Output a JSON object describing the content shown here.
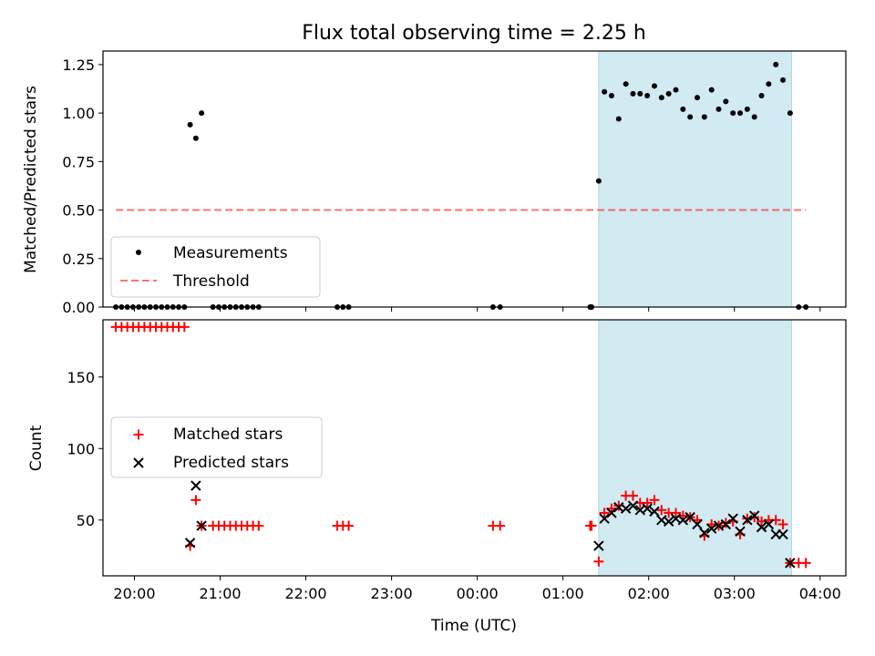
{
  "title": "Flux total observing time = 2.25 h",
  "colors": {
    "shade": "#add8e6",
    "measurement": "#000000",
    "threshold": "#ff0000",
    "matched": "#ff0000",
    "predicted": "#000000"
  },
  "chart_data": [
    {
      "type": "scatter",
      "ylabel": "Matched/Predicted stars",
      "ylim": [
        0,
        1.32
      ],
      "yticks": [
        0.0,
        0.25,
        0.5,
        0.75,
        1.0,
        1.25
      ],
      "ytick_labels": [
        "0.00",
        "0.25",
        "0.50",
        "0.75",
        "1.00",
        "1.25"
      ],
      "xlim": [
        "19:38",
        "04:18"
      ],
      "shaded_span": [
        "01:25",
        "03:40"
      ],
      "legend": {
        "placement": "lower-left",
        "entries": [
          "Measurements",
          "Threshold"
        ]
      },
      "threshold": {
        "name": "Threshold",
        "value": 0.5,
        "x_range": [
          "19:47",
          "03:50"
        ]
      },
      "series": [
        {
          "name": "Measurements",
          "marker": "dot",
          "points": [
            [
              "19:47",
              0
            ],
            [
              "19:51",
              0
            ],
            [
              "19:55",
              0
            ],
            [
              "19:59",
              0
            ],
            [
              "20:03",
              0
            ],
            [
              "20:07",
              0
            ],
            [
              "20:11",
              0
            ],
            [
              "20:15",
              0
            ],
            [
              "20:19",
              0
            ],
            [
              "20:23",
              0
            ],
            [
              "20:27",
              0
            ],
            [
              "20:31",
              0
            ],
            [
              "20:35",
              0
            ],
            [
              "20:39",
              0.94
            ],
            [
              "20:43",
              0.87
            ],
            [
              "20:47",
              1.0
            ],
            [
              "20:55",
              0
            ],
            [
              "20:59",
              0
            ],
            [
              "21:03",
              0
            ],
            [
              "21:07",
              0
            ],
            [
              "21:11",
              0
            ],
            [
              "21:15",
              0
            ],
            [
              "21:19",
              0
            ],
            [
              "21:23",
              0
            ],
            [
              "21:27",
              0
            ],
            [
              "22:22",
              0
            ],
            [
              "22:26",
              0
            ],
            [
              "22:30",
              0
            ],
            [
              "00:11",
              0
            ],
            [
              "00:16",
              0
            ],
            [
              "01:19",
              0
            ],
            [
              "01:20",
              0
            ],
            [
              "01:25",
              0.65
            ],
            [
              "01:29",
              1.11
            ],
            [
              "01:34",
              1.09
            ],
            [
              "01:39",
              0.97
            ],
            [
              "01:44",
              1.15
            ],
            [
              "01:49",
              1.1
            ],
            [
              "01:54",
              1.1
            ],
            [
              "01:59",
              1.09
            ],
            [
              "02:04",
              1.14
            ],
            [
              "02:09",
              1.08
            ],
            [
              "02:14",
              1.1
            ],
            [
              "02:19",
              1.12
            ],
            [
              "02:24",
              1.02
            ],
            [
              "02:29",
              0.98
            ],
            [
              "02:34",
              1.08
            ],
            [
              "02:39",
              0.98
            ],
            [
              "02:44",
              1.12
            ],
            [
              "02:49",
              1.02
            ],
            [
              "02:54",
              1.06
            ],
            [
              "02:59",
              1.0
            ],
            [
              "03:04",
              1.0
            ],
            [
              "03:09",
              1.02
            ],
            [
              "03:14",
              0.98
            ],
            [
              "03:19",
              1.09
            ],
            [
              "03:24",
              1.15
            ],
            [
              "03:29",
              1.25
            ],
            [
              "03:34",
              1.17
            ],
            [
              "03:39",
              1.0
            ],
            [
              "03:45",
              0
            ],
            [
              "03:50",
              0
            ]
          ]
        }
      ]
    },
    {
      "type": "scatter",
      "xlabel": "Time (UTC)",
      "ylabel": "Count",
      "ylim": [
        11,
        190
      ],
      "yticks": [
        50,
        100,
        150
      ],
      "ytick_labels": [
        "50",
        "100",
        "150"
      ],
      "xlim": [
        "19:38",
        "04:18"
      ],
      "xticks": [
        "20:00",
        "21:00",
        "22:00",
        "23:00",
        "00:00",
        "01:00",
        "02:00",
        "03:00",
        "04:00"
      ],
      "shaded_span": [
        "01:25",
        "03:40"
      ],
      "legend": {
        "placement": "center-left",
        "entries": [
          "Matched stars",
          "Predicted stars"
        ]
      },
      "series": [
        {
          "name": "Matched stars",
          "marker": "plus",
          "points": [
            [
              "19:47",
              185
            ],
            [
              "19:51",
              185
            ],
            [
              "19:55",
              185
            ],
            [
              "19:59",
              185
            ],
            [
              "20:03",
              185
            ],
            [
              "20:07",
              185
            ],
            [
              "20:11",
              185
            ],
            [
              "20:15",
              185
            ],
            [
              "20:19",
              185
            ],
            [
              "20:23",
              185
            ],
            [
              "20:27",
              185
            ],
            [
              "20:31",
              185
            ],
            [
              "20:35",
              185
            ],
            [
              "20:39",
              32
            ],
            [
              "20:43",
              64
            ],
            [
              "20:47",
              46
            ],
            [
              "20:55",
              46
            ],
            [
              "20:59",
              46
            ],
            [
              "21:03",
              46
            ],
            [
              "21:07",
              46
            ],
            [
              "21:11",
              46
            ],
            [
              "21:15",
              46
            ],
            [
              "21:19",
              46
            ],
            [
              "21:23",
              46
            ],
            [
              "21:27",
              46
            ],
            [
              "22:22",
              46
            ],
            [
              "22:26",
              46
            ],
            [
              "22:30",
              46
            ],
            [
              "00:11",
              46
            ],
            [
              "00:16",
              46
            ],
            [
              "01:19",
              46
            ],
            [
              "01:20",
              46
            ],
            [
              "01:25",
              21
            ],
            [
              "01:29",
              55
            ],
            [
              "01:34",
              58
            ],
            [
              "01:39",
              60
            ],
            [
              "01:44",
              67
            ],
            [
              "01:49",
              67
            ],
            [
              "01:54",
              62
            ],
            [
              "01:59",
              62
            ],
            [
              "02:04",
              64
            ],
            [
              "02:09",
              57
            ],
            [
              "02:14",
              55
            ],
            [
              "02:19",
              55
            ],
            [
              "02:24",
              53
            ],
            [
              "02:29",
              52
            ],
            [
              "02:34",
              50
            ],
            [
              "02:39",
              39
            ],
            [
              "02:44",
              47
            ],
            [
              "02:49",
              46
            ],
            [
              "02:54",
              48
            ],
            [
              "02:59",
              49
            ],
            [
              "03:04",
              40
            ],
            [
              "03:09",
              51
            ],
            [
              "03:14",
              52
            ],
            [
              "03:19",
              49
            ],
            [
              "03:24",
              50
            ],
            [
              "03:29",
              50
            ],
            [
              "03:34",
              47
            ],
            [
              "03:39",
              20
            ],
            [
              "03:45",
              20
            ],
            [
              "03:50",
              20
            ]
          ]
        },
        {
          "name": "Predicted stars",
          "marker": "x",
          "points": [
            [
              "20:39",
              34
            ],
            [
              "20:43",
              74
            ],
            [
              "20:47",
              46
            ],
            [
              "01:25",
              32
            ],
            [
              "01:29",
              51
            ],
            [
              "01:34",
              55
            ],
            [
              "01:39",
              59
            ],
            [
              "01:44",
              58
            ],
            [
              "01:49",
              60
            ],
            [
              "01:54",
              57
            ],
            [
              "01:59",
              58
            ],
            [
              "02:04",
              56
            ],
            [
              "02:09",
              50
            ],
            [
              "02:14",
              49
            ],
            [
              "02:19",
              51
            ],
            [
              "02:24",
              50
            ],
            [
              "02:29",
              52
            ],
            [
              "02:34",
              47
            ],
            [
              "02:39",
              41
            ],
            [
              "02:44",
              44
            ],
            [
              "02:49",
              46
            ],
            [
              "02:54",
              47
            ],
            [
              "02:59",
              51
            ],
            [
              "03:04",
              42
            ],
            [
              "03:09",
              50
            ],
            [
              "03:14",
              53
            ],
            [
              "03:19",
              45
            ],
            [
              "03:24",
              47
            ],
            [
              "03:29",
              40
            ],
            [
              "03:34",
              40
            ],
            [
              "03:39",
              20
            ]
          ]
        }
      ]
    }
  ]
}
